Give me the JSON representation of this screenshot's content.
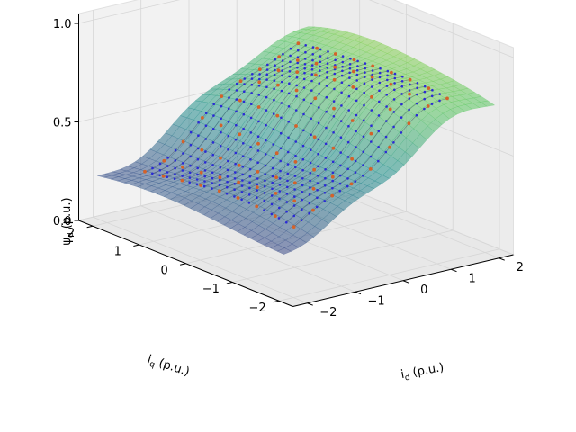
{
  "chart_data": {
    "type": "surface3d",
    "title": "",
    "xlabel": "i",
    "xlabel_sub": "d",
    "xlabel_unit": "(p.u.)",
    "ylabel": "i",
    "ylabel_sub": "q",
    "ylabel_unit": "(p.u.)",
    "zlabel": "ψ",
    "zlabel_sub": "d",
    "zlabel_unit": "(p.u.)",
    "xlim": [
      -2,
      2
    ],
    "ylim": [
      -2,
      2
    ],
    "zlim": [
      0,
      1
    ],
    "x_ticks": [
      -2,
      -1,
      0,
      1,
      2
    ],
    "x_tick_labels": [
      "−2",
      "−1",
      "0",
      "1",
      "2"
    ],
    "y_ticks": [
      -2,
      -1,
      0,
      1,
      2
    ],
    "y_tick_labels": [
      "−2",
      "−1",
      "0",
      "1",
      "2"
    ],
    "z_ticks": [
      0,
      0.5,
      1
    ],
    "z_tick_labels": [
      "0.0",
      "0.5",
      "1.0"
    ],
    "grid": true,
    "colormap": "viridis",
    "surface_alpha": 0.5,
    "series": [
      {
        "kind": "surface",
        "x_range": [
          -2.2,
          2.2
        ],
        "y_range": [
          -2.0,
          2.0
        ],
        "z_min": 0.0,
        "z_max": 1.0
      },
      {
        "kind": "dense-samples",
        "marker_color": "#2b2bd6",
        "grid_points_per_axis": 21,
        "x_range": [
          -1.6,
          1.6
        ],
        "y_range": [
          -1.6,
          1.6
        ]
      },
      {
        "kind": "measured-points",
        "marker_color": "#d4622a",
        "grid_points_per_axis": 9,
        "x_range": [
          -1.6,
          1.6
        ],
        "y_range": [
          -1.6,
          1.6
        ]
      }
    ],
    "colors": {
      "cmap_low": "#440154",
      "cmap_mid": "#21918c",
      "cmap_high": "#fde725",
      "dense_points": "#2b2bd6",
      "measured_points": "#d4622a"
    }
  }
}
